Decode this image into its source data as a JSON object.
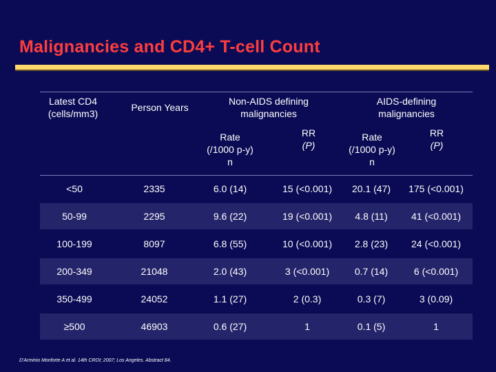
{
  "title": "Malignancies and CD4+ T-cell Count",
  "headers": {
    "cd4_line1": "Latest CD4",
    "cd4_line2": "(cells/mm3)",
    "person_years": "Person Years",
    "non_aids_line1": "Non-AIDS defining",
    "non_aids_line2": "malignancies",
    "aids_line1": "AIDS-defining",
    "aids_line2": "malignancies",
    "rate_line1": "Rate",
    "rate_line2": "(/1000 p-y)",
    "rate_line3": "n",
    "rr_line1": "RR",
    "rr_line2": "(P)"
  },
  "rows": [
    {
      "cd4": "<50",
      "py": "2335",
      "na_rate": "6.0 (14)",
      "na_rr": "15 (<0.001)",
      "a_rate": "20.1 (47)",
      "a_rr": "175 (<0.001)"
    },
    {
      "cd4": "50-99",
      "py": "2295",
      "na_rate": "9.6 (22)",
      "na_rr": "19 (<0.001)",
      "a_rate": "4.8 (11)",
      "a_rr": "41 (<0.001)"
    },
    {
      "cd4": "100-199",
      "py": "8097",
      "na_rate": "6.8 (55)",
      "na_rr": "10 (<0.001)",
      "a_rate": "2.8 (23)",
      "a_rr": "24 (<0.001)"
    },
    {
      "cd4": "200-349",
      "py": "21048",
      "na_rate": "2.0 (43)",
      "na_rr": "3 (<0.001)",
      "a_rate": "0.7 (14)",
      "a_rr": "6 (<0.001)"
    },
    {
      "cd4": "350-499",
      "py": "24052",
      "na_rate": "1.1 (27)",
      "na_rr": "2 (0.3)",
      "a_rate": "0.3 (7)",
      "a_rr": "3 (0.09)"
    },
    {
      "cd4": "≥500",
      "py": "46903",
      "na_rate": "0.6 (27)",
      "na_rr": "1",
      "a_rate": "0.1 (5)",
      "a_rr": "1"
    }
  ],
  "footnote": "D'Arminio Monforte A et al. 14th CROI; 2007; Los Angeles. Abstract 84.",
  "colors": {
    "background": "#0b0b55",
    "title": "#ff3d3d",
    "rule": "#ffd96a"
  }
}
